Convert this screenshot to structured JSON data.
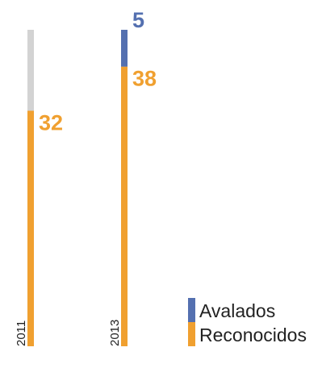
{
  "chart_data": {
    "type": "bar",
    "stacked": true,
    "categories": [
      "2011",
      "2013"
    ],
    "series": [
      {
        "name": "Reconocidos",
        "values": [
          32,
          38
        ],
        "color": "#f0a030"
      },
      {
        "name": "Avalados",
        "values": [
          null,
          5
        ],
        "color": "#5470b0"
      }
    ],
    "background_bar": {
      "values": [
        43,
        43
      ],
      "color": "#d3d3d3"
    },
    "value_labels": [
      {
        "category": "2011",
        "series": "Reconocidos",
        "text": "32"
      },
      {
        "category": "2013",
        "series": "Reconocidos",
        "text": "38"
      },
      {
        "category": "2013",
        "series": "Avalados",
        "text": "5"
      }
    ],
    "title": "",
    "xlabel": "",
    "ylabel": "",
    "ylim": [
      0,
      43
    ],
    "grid": false,
    "legend_position": "bottom-right"
  }
}
